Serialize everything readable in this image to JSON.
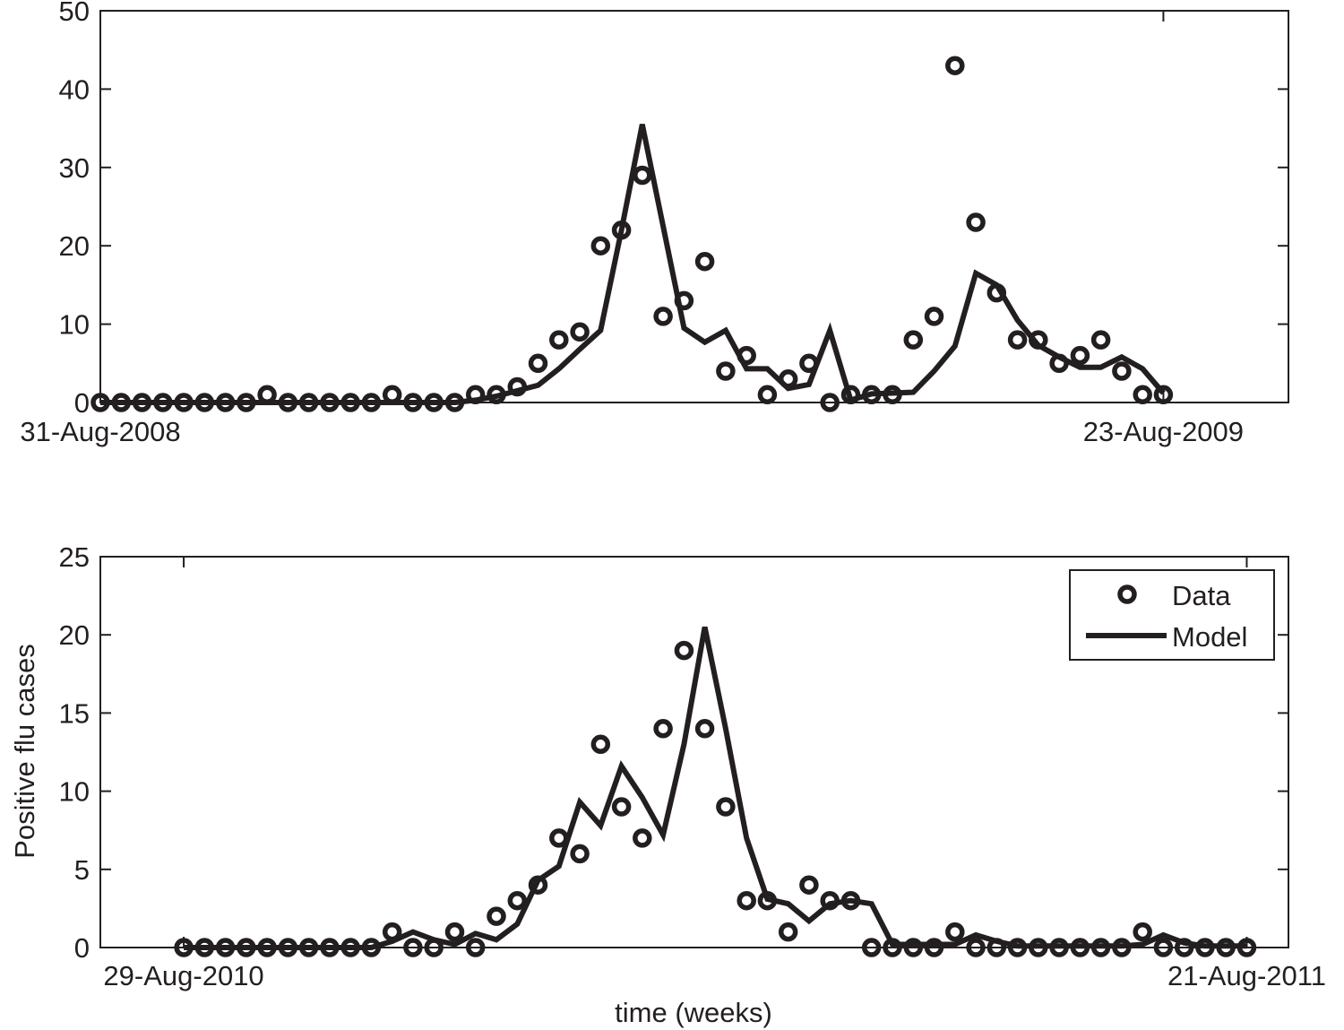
{
  "ylabel": "Positive flu cases",
  "xlabel": "time (weeks)",
  "legend": {
    "data_label": "Data",
    "model_label": "Model",
    "placement": "top-right"
  },
  "colors": {
    "ink": "#231f20",
    "background": "#ffffff"
  },
  "chart_data": [
    {
      "type": "line",
      "panel": "top",
      "xlim": [
        0,
        57
      ],
      "ylim": [
        0,
        50
      ],
      "yticks": [
        0,
        10,
        20,
        30,
        40,
        50
      ],
      "xticks": [
        0,
        51
      ],
      "xtick_labels": [
        "31-Aug-2008",
        "23-Aug-2009"
      ],
      "x": [
        0,
        1,
        2,
        3,
        4,
        5,
        6,
        7,
        8,
        9,
        10,
        11,
        12,
        13,
        14,
        15,
        16,
        17,
        18,
        19,
        20,
        21,
        22,
        23,
        24,
        25,
        26,
        27,
        28,
        29,
        30,
        31,
        32,
        33,
        34,
        35,
        36,
        37,
        38,
        39,
        40,
        41,
        42,
        43,
        44,
        45,
        46,
        47,
        48,
        49,
        50,
        51
      ],
      "series": [
        {
          "name": "Data",
          "style": "markers",
          "values": [
            0,
            0,
            0,
            0,
            0,
            0,
            0,
            0,
            1,
            0,
            0,
            0,
            0,
            0,
            1,
            0,
            0,
            0,
            1,
            1,
            2,
            5,
            8,
            9,
            20,
            22,
            29,
            11,
            13,
            18,
            4,
            6,
            1,
            3,
            5,
            0,
            1,
            1,
            1,
            8,
            11,
            43,
            23,
            14,
            8,
            8,
            5,
            6,
            8,
            4,
            1,
            1
          ]
        },
        {
          "name": "Model",
          "style": "line",
          "values": [
            0,
            0,
            0,
            0,
            0,
            0,
            0,
            0,
            0,
            0,
            0,
            0,
            0,
            0,
            0,
            0,
            0,
            0,
            0.3,
            0.8,
            1.5,
            2.2,
            4.3,
            6.8,
            9.2,
            22,
            35.5,
            22.5,
            9.5,
            7.7,
            9.2,
            4.3,
            4.3,
            1.8,
            2.3,
            9.2,
            0.3,
            1.1,
            1.2,
            1.3,
            4,
            7.2,
            16.5,
            15,
            10.5,
            7.3,
            5.8,
            4.5,
            4.5,
            5.8,
            4.3,
            1.2
          ]
        }
      ]
    },
    {
      "type": "line",
      "panel": "bottom",
      "xlim": [
        0,
        57
      ],
      "ylim": [
        0,
        25
      ],
      "yticks": [
        0,
        5,
        10,
        15,
        20,
        25
      ],
      "xticks": [
        4,
        55
      ],
      "xtick_labels": [
        "29-Aug-2010",
        "21-Aug-2011"
      ],
      "x": [
        4,
        5,
        6,
        7,
        8,
        9,
        10,
        11,
        12,
        13,
        14,
        15,
        16,
        17,
        18,
        19,
        20,
        21,
        22,
        23,
        24,
        25,
        26,
        27,
        28,
        29,
        30,
        31,
        32,
        33,
        34,
        35,
        36,
        37,
        38,
        39,
        40,
        41,
        42,
        43,
        44,
        45,
        46,
        47,
        48,
        49,
        50,
        51,
        52,
        53,
        54,
        55
      ],
      "series": [
        {
          "name": "Data",
          "style": "markers",
          "values": [
            0,
            0,
            0,
            0,
            0,
            0,
            0,
            0,
            0,
            0,
            1,
            0,
            0,
            1,
            0,
            2,
            3,
            4,
            7,
            6,
            13,
            9,
            7,
            14,
            19,
            14,
            9,
            3,
            3,
            1,
            4,
            3,
            3,
            0,
            0,
            0,
            0,
            1,
            0,
            0,
            0,
            0,
            0,
            0,
            0,
            0,
            1,
            0,
            0,
            0,
            0,
            0
          ]
        },
        {
          "name": "Model",
          "style": "line",
          "values": [
            0,
            0,
            0,
            0,
            0,
            0,
            0,
            0,
            0,
            0,
            0.4,
            1,
            0.5,
            0.2,
            0.9,
            0.5,
            1.5,
            4.3,
            5.2,
            9.3,
            7.8,
            11.6,
            9.6,
            7.2,
            13,
            20.5,
            14,
            7,
            3.1,
            2.8,
            1.7,
            2.8,
            3,
            2.8,
            0.2,
            0.2,
            0.2,
            0.2,
            0.8,
            0.4,
            0.1,
            0.1,
            0.1,
            0.1,
            0.1,
            0.1,
            0.2,
            0.8,
            0.3,
            0.1,
            0.1,
            0.1
          ]
        }
      ]
    }
  ]
}
